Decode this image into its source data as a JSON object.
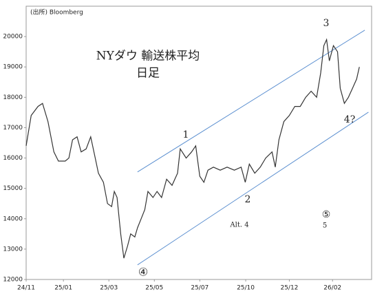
{
  "chart_data": {
    "type": "line",
    "title": "NYダウ 輸送株平均",
    "subtitle": "日足",
    "source": "(出所) Bloomberg",
    "x": [
      0,
      0.11,
      0.26,
      0.36,
      0.48,
      0.61,
      0.71,
      0.86,
      0.94,
      1.02,
      1.12,
      1.21,
      1.32,
      1.42,
      1.52,
      1.59,
      1.7,
      1.79,
      1.88,
      1.94,
      2.0,
      2.08,
      2.15,
      2.23,
      2.3,
      2.39,
      2.45,
      2.53,
      2.61,
      2.68,
      2.79,
      2.88,
      2.98,
      3.09,
      3.21,
      3.33,
      3.39,
      3.52,
      3.64,
      3.73,
      3.82,
      3.91,
      4.0,
      4.12,
      4.27,
      4.42,
      4.58,
      4.73,
      4.82,
      4.91,
      5.03,
      5.15,
      5.27,
      5.41,
      5.48,
      5.56,
      5.67,
      5.79,
      5.91,
      6.03,
      6.15,
      6.27,
      6.39,
      6.48,
      6.55,
      6.61,
      6.67,
      6.76,
      6.85,
      6.91,
      7.0,
      7.09,
      7.18,
      7.27,
      7.33
    ],
    "series": [
      {
        "color": "#333333",
        "values": [
          16400,
          17400,
          17700,
          17800,
          17200,
          16200,
          15900,
          15900,
          16000,
          16600,
          16700,
          16200,
          16300,
          16700,
          16000,
          15500,
          15200,
          14500,
          14400,
          14900,
          14700,
          13500,
          12700,
          13100,
          13500,
          13400,
          13700,
          14000,
          14300,
          14900,
          14700,
          14900,
          14700,
          15300,
          15100,
          15500,
          16300,
          16000,
          16200,
          16400,
          15400,
          15200,
          15600,
          15700,
          15600,
          15700,
          15600,
          15700,
          15200,
          15800,
          15500,
          15700,
          16000,
          16200,
          15700,
          16600,
          17200,
          17400,
          17700,
          17700,
          18000,
          18200,
          18000,
          18800,
          19700,
          19900,
          19200,
          19700,
          19500,
          18300,
          17800,
          18000,
          18300,
          18600,
          19000
        ]
      }
    ],
    "trendlines": [
      {
        "color": "#5b8fd0",
        "x": [
          2.45,
          7.45
        ],
        "values": [
          15540,
          20210
        ]
      },
      {
        "color": "#5b8fd0",
        "x": [
          2.45,
          7.53
        ],
        "values": [
          12480,
          17510
        ]
      }
    ],
    "xlim": [
      0,
      7.6
    ],
    "xticks": [
      {
        "value": 0,
        "label": "24/11"
      },
      {
        "value": 0.82,
        "label": "25/01"
      },
      {
        "value": 1.82,
        "label": "25/03"
      },
      {
        "value": 2.82,
        "label": "25/05"
      },
      {
        "value": 3.82,
        "label": "25/07"
      },
      {
        "value": 4.83,
        "label": "25/10"
      },
      {
        "value": 5.79,
        "label": "25/12"
      },
      {
        "value": 6.74,
        "label": "26/02"
      }
    ],
    "ylim": [
      12000,
      21000
    ],
    "yticks": [
      12000,
      13000,
      14000,
      15000,
      16000,
      17000,
      18000,
      19000,
      20000
    ],
    "annotations": [
      "1",
      "2",
      "3",
      "4?",
      "④",
      "⑤",
      "5",
      "Alt. 4"
    ]
  }
}
